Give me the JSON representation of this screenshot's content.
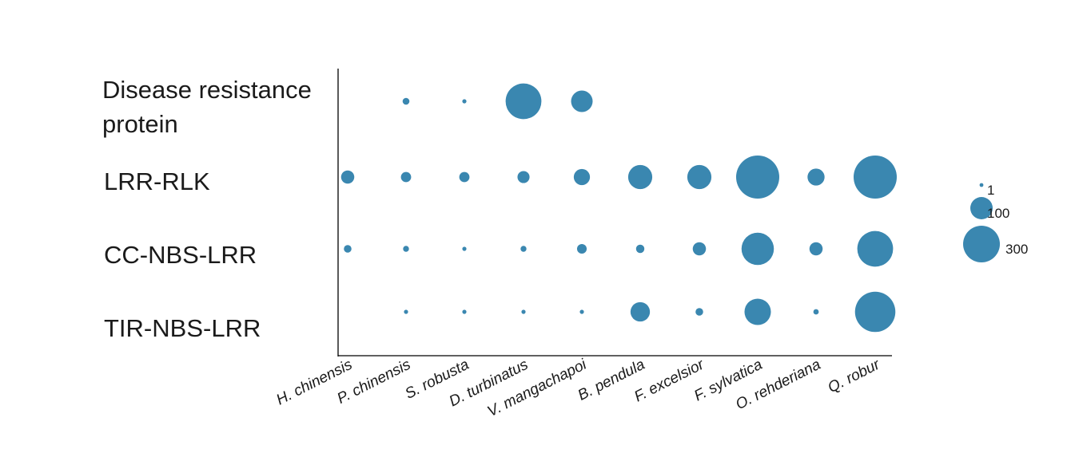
{
  "chart_data": {
    "type": "scatter",
    "title": "",
    "xlabel": "",
    "ylabel": "",
    "x_categories": [
      "H. chinensis",
      "P. chinensis",
      "S. robusta",
      "D. turbinatus",
      "V. mangachapoi",
      "B. pendula",
      "F. excelsior",
      "F. sylvatica",
      "O. rehderiana",
      "Q. robur"
    ],
    "y_categories": [
      {
        "lines": [
          "Disease resistance",
          "protein"
        ]
      },
      {
        "lines": [
          "LRR-RLK"
        ]
      },
      {
        "lines": [
          "CC-NBS-LRR"
        ]
      },
      {
        "lines": [
          "TIR-NBS-LRR"
        ]
      }
    ],
    "marker_color": "#3a87b0",
    "size_legend": [
      {
        "label": "1",
        "value": 1
      },
      {
        "label": "100",
        "value": 100
      },
      {
        "label": "300",
        "value": 300
      }
    ],
    "points": [
      {
        "x": "P. chinensis",
        "y": 0,
        "value": 8
      },
      {
        "x": "S. robusta",
        "y": 0,
        "value": 2
      },
      {
        "x": "D. turbinatus",
        "y": 0,
        "value": 220
      },
      {
        "x": "V. mangachapoi",
        "y": 0,
        "value": 80
      },
      {
        "x": "H. chinensis",
        "y": 1,
        "value": 30
      },
      {
        "x": "P. chinensis",
        "y": 1,
        "value": 18
      },
      {
        "x": "S. robusta",
        "y": 1,
        "value": 18
      },
      {
        "x": "D. turbinatus",
        "y": 1,
        "value": 25
      },
      {
        "x": "V. mangachapoi",
        "y": 1,
        "value": 45
      },
      {
        "x": "B. pendula",
        "y": 1,
        "value": 100
      },
      {
        "x": "F. excelsior",
        "y": 1,
        "value": 100
      },
      {
        "x": "F. sylvatica",
        "y": 1,
        "value": 320
      },
      {
        "x": "O. rehderiana",
        "y": 1,
        "value": 50
      },
      {
        "x": "Q. robur",
        "y": 1,
        "value": 320
      },
      {
        "x": "H. chinensis",
        "y": 2,
        "value": 10
      },
      {
        "x": "P. chinensis",
        "y": 2,
        "value": 6
      },
      {
        "x": "S. robusta",
        "y": 2,
        "value": 2
      },
      {
        "x": "D. turbinatus",
        "y": 2,
        "value": 6
      },
      {
        "x": "V. mangachapoi",
        "y": 2,
        "value": 16
      },
      {
        "x": "B. pendula",
        "y": 2,
        "value": 12
      },
      {
        "x": "F. excelsior",
        "y": 2,
        "value": 30
      },
      {
        "x": "F. sylvatica",
        "y": 2,
        "value": 180
      },
      {
        "x": "O. rehderiana",
        "y": 2,
        "value": 30
      },
      {
        "x": "Q. robur",
        "y": 2,
        "value": 220
      },
      {
        "x": "P. chinensis",
        "y": 3,
        "value": 2
      },
      {
        "x": "S. robusta",
        "y": 3,
        "value": 2
      },
      {
        "x": "D. turbinatus",
        "y": 3,
        "value": 2
      },
      {
        "x": "V. mangachapoi",
        "y": 3,
        "value": 2
      },
      {
        "x": "B. pendula",
        "y": 3,
        "value": 65
      },
      {
        "x": "F. excelsior",
        "y": 3,
        "value": 10
      },
      {
        "x": "F. sylvatica",
        "y": 3,
        "value": 120
      },
      {
        "x": "O. rehderiana",
        "y": 3,
        "value": 5
      },
      {
        "x": "Q. robur",
        "y": 3,
        "value": 280
      }
    ]
  }
}
